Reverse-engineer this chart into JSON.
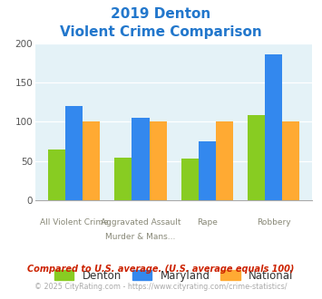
{
  "title_line1": "2019 Denton",
  "title_line2": "Violent Crime Comparison",
  "denton": [
    65,
    54,
    53,
    109
  ],
  "maryland": [
    120,
    105,
    75,
    186
  ],
  "national": [
    100,
    100,
    100,
    100
  ],
  "denton_color": "#88cc22",
  "maryland_color": "#3388ee",
  "national_color": "#ffaa33",
  "bg_color": "#e4f2f7",
  "ylim": [
    0,
    200
  ],
  "yticks": [
    0,
    50,
    100,
    150,
    200
  ],
  "footnote1": "Compared to U.S. average. (U.S. average equals 100)",
  "footnote2": "© 2025 CityRating.com - https://www.cityrating.com/crime-statistics/",
  "legend_labels": [
    "Denton",
    "Maryland",
    "National"
  ],
  "title_color": "#2277cc",
  "footnote1_color": "#cc2200",
  "footnote2_color": "#aaaaaa",
  "xtick_top": [
    "",
    "Aggravated Assault",
    "Rape",
    ""
  ],
  "xtick_bot": [
    "All Violent Crime",
    "Murder & Mans...",
    "",
    "Robbery"
  ]
}
